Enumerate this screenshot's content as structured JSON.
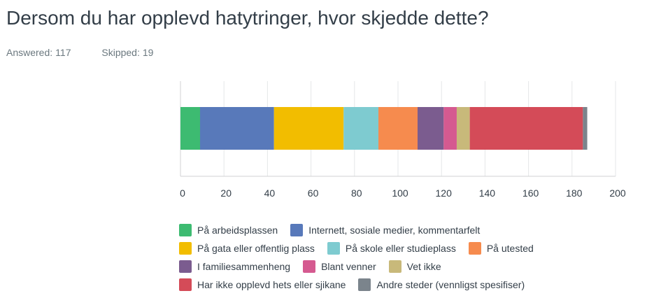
{
  "header": {
    "title": "Dersom du har opplevd hatytringer, hvor skjedde dette?",
    "answered_label": "Answered:",
    "answered_value": "117",
    "skipped_label": "Skipped:",
    "skipped_value": "19"
  },
  "chart_data": {
    "type": "bar",
    "orientation": "horizontal",
    "stacked": true,
    "xlim": [
      0,
      200
    ],
    "xticks": [
      "0",
      "20",
      "40",
      "60",
      "80",
      "100",
      "120",
      "140",
      "160",
      "180",
      "200"
    ],
    "grid": true,
    "legend_position": "bottom",
    "series": [
      {
        "name": "På arbeidsplassen",
        "value": 9,
        "color": "#3dbb71"
      },
      {
        "name": "Internett, sosiale medier, kommentarfelt",
        "value": 34,
        "color": "#5879ba"
      },
      {
        "name": "På gata eller offentlig plass",
        "value": 32,
        "color": "#f2bd00"
      },
      {
        "name": "På skole eller studieplass",
        "value": 16,
        "color": "#7ecbd0"
      },
      {
        "name": "På utested",
        "value": 18,
        "color": "#f68b4e"
      },
      {
        "name": "I familiesammenheng",
        "value": 12,
        "color": "#7b5c8f"
      },
      {
        "name": "Blant venner",
        "value": 6,
        "color": "#d55a90"
      },
      {
        "name": "Vet ikke",
        "value": 6,
        "color": "#c8b97a"
      },
      {
        "name": "Har ikke opplevd hets eller sjikane",
        "value": 52,
        "color": "#d44b58"
      },
      {
        "name": "Andre steder (vennligst spesifiser)",
        "value": 2,
        "color": "#7b848c"
      }
    ]
  }
}
